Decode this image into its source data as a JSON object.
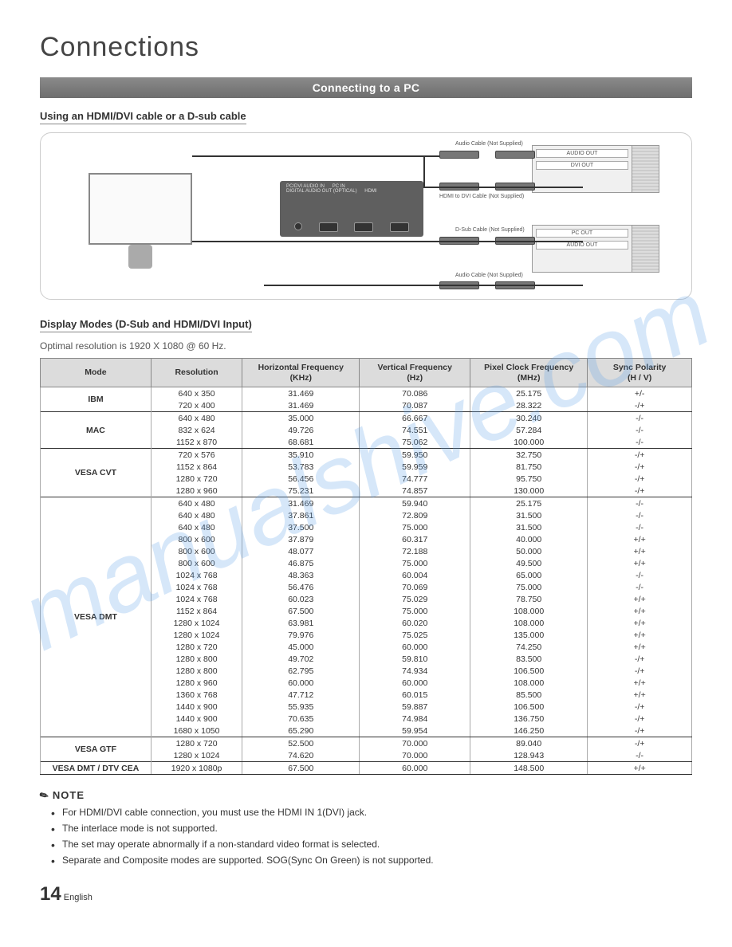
{
  "watermark": "manualshive.com",
  "heading": "Connections",
  "section_title": "Connecting to a PC",
  "subhead_cable": "Using an HDMI/DVI cable or a D-sub cable",
  "diagram": {
    "panel_labels": [
      "PC/DVI AUDIO IN",
      "PC IN",
      "DIGITAL AUDIO OUT (OPTICAL)",
      "HDMI"
    ],
    "pc_top": [
      "AUDIO OUT",
      "DVI OUT"
    ],
    "pc_bot": [
      "PC OUT",
      "AUDIO OUT"
    ],
    "cable_labels": {
      "audio1": "Audio Cable (Not Supplied)",
      "hdmi": "HDMI to DVI Cable (Not Supplied)",
      "dsub": "D-Sub Cable (Not Supplied)",
      "audio2": "Audio Cable (Not Supplied)"
    }
  },
  "subhead_modes": "Display Modes (D-Sub and HDMI/DVI Input)",
  "optimal_text": "Optimal resolution is 1920 X 1080 @ 60 Hz.",
  "table": {
    "headers": [
      "Mode",
      "Resolution",
      "Horizontal Frequency (KHz)",
      "Vertical Frequency (Hz)",
      "Pixel Clock Frequency (MHz)",
      "Sync Polarity (H / V)"
    ],
    "col_widths": [
      "17%",
      "14%",
      "18%",
      "17%",
      "18%",
      "16%"
    ],
    "groups": [
      {
        "mode": "IBM",
        "rows": [
          [
            "640 x 350",
            "31.469",
            "70.086",
            "25.175",
            "+/-"
          ],
          [
            "720 x 400",
            "31.469",
            "70.087",
            "28.322",
            "-/+"
          ]
        ]
      },
      {
        "mode": "MAC",
        "rows": [
          [
            "640 x 480",
            "35.000",
            "66.667",
            "30.240",
            "-/-"
          ],
          [
            "832 x 624",
            "49.726",
            "74.551",
            "57.284",
            "-/-"
          ],
          [
            "1152 x 870",
            "68.681",
            "75.062",
            "100.000",
            "-/-"
          ]
        ]
      },
      {
        "mode": "VESA CVT",
        "rows": [
          [
            "720 x 576",
            "35.910",
            "59.950",
            "32.750",
            "-/+"
          ],
          [
            "1152 x 864",
            "53.783",
            "59.959",
            "81.750",
            "-/+"
          ],
          [
            "1280 x 720",
            "56.456",
            "74.777",
            "95.750",
            "-/+"
          ],
          [
            "1280 x 960",
            "75.231",
            "74.857",
            "130.000",
            "-/+"
          ]
        ]
      },
      {
        "mode": "VESA DMT",
        "rows": [
          [
            "640 x 480",
            "31.469",
            "59.940",
            "25.175",
            "-/-"
          ],
          [
            "640 x 480",
            "37.861",
            "72.809",
            "31.500",
            "-/-"
          ],
          [
            "640 x 480",
            "37.500",
            "75.000",
            "31.500",
            "-/-"
          ],
          [
            "800 x 600",
            "37.879",
            "60.317",
            "40.000",
            "+/+"
          ],
          [
            "800 x 600",
            "48.077",
            "72.188",
            "50.000",
            "+/+"
          ],
          [
            "800 x 600",
            "46.875",
            "75.000",
            "49.500",
            "+/+"
          ],
          [
            "1024 x 768",
            "48.363",
            "60.004",
            "65.000",
            "-/-"
          ],
          [
            "1024 x 768",
            "56.476",
            "70.069",
            "75.000",
            "-/-"
          ],
          [
            "1024 x 768",
            "60.023",
            "75.029",
            "78.750",
            "+/+"
          ],
          [
            "1152 x 864",
            "67.500",
            "75.000",
            "108.000",
            "+/+"
          ],
          [
            "1280 x 1024",
            "63.981",
            "60.020",
            "108.000",
            "+/+"
          ],
          [
            "1280 x 1024",
            "79.976",
            "75.025",
            "135.000",
            "+/+"
          ],
          [
            "1280 x 720",
            "45.000",
            "60.000",
            "74.250",
            "+/+"
          ],
          [
            "1280 x 800",
            "49.702",
            "59.810",
            "83.500",
            "-/+"
          ],
          [
            "1280 x 800",
            "62.795",
            "74.934",
            "106.500",
            "-/+"
          ],
          [
            "1280 x 960",
            "60.000",
            "60.000",
            "108.000",
            "+/+"
          ],
          [
            "1360 x 768",
            "47.712",
            "60.015",
            "85.500",
            "+/+"
          ],
          [
            "1440 x 900",
            "55.935",
            "59.887",
            "106.500",
            "-/+"
          ],
          [
            "1440 x 900",
            "70.635",
            "74.984",
            "136.750",
            "-/+"
          ],
          [
            "1680 x 1050",
            "65.290",
            "59.954",
            "146.250",
            "-/+"
          ]
        ]
      },
      {
        "mode": "VESA GTF",
        "rows": [
          [
            "1280 x 720",
            "52.500",
            "70.000",
            "89.040",
            "-/+"
          ],
          [
            "1280 x 1024",
            "74.620",
            "70.000",
            "128.943",
            "-/-"
          ]
        ]
      },
      {
        "mode": "VESA DMT / DTV CEA",
        "rows": [
          [
            "1920 x 1080p",
            "67.500",
            "60.000",
            "148.500",
            "+/+"
          ]
        ]
      }
    ]
  },
  "note_label": "NOTE",
  "notes": [
    "For HDMI/DVI cable connection, you must use the HDMI IN 1(DVI) jack.",
    "The interlace mode is not supported.",
    "The set may operate abnormally if a non-standard video format is selected.",
    "Separate and Composite modes are supported. SOG(Sync On Green) is not supported."
  ],
  "footer": {
    "page": "14",
    "lang": "English"
  }
}
